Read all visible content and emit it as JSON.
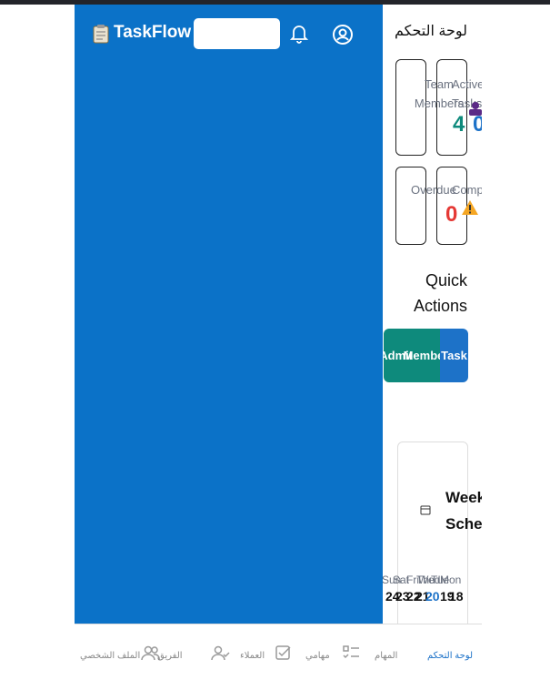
{
  "header": {
    "logo": "TaskFlow"
  },
  "page_title": "لوحة التحكم",
  "stats": [
    {
      "label": "Team Members",
      "value": "4"
    },
    {
      "label": "Active Tasks",
      "value": "0"
    },
    {
      "label": "Overdue",
      "value": "0"
    },
    {
      "label": "Completed"
    }
  ],
  "quick_actions": {
    "title": "Quick Actions",
    "buttons": [
      "Admin",
      "Member",
      "Task"
    ]
  },
  "schedule": {
    "title": "Weekly Schedule",
    "days": [
      {
        "name": "Sun",
        "date": "24"
      },
      {
        "name": "Sat",
        "date": "23"
      },
      {
        "name": "Fri",
        "date": "22"
      },
      {
        "name": "Thu",
        "date": "21"
      },
      {
        "name": "Wed",
        "date": "20"
      },
      {
        "name": "Tue",
        "date": "19"
      },
      {
        "name": "Mon",
        "date": "18"
      }
    ]
  },
  "nav": [
    "الملف الشخصي",
    "الفريق",
    "العملاء",
    "مهامي",
    "المهام",
    "لوحة التحكم"
  ]
}
